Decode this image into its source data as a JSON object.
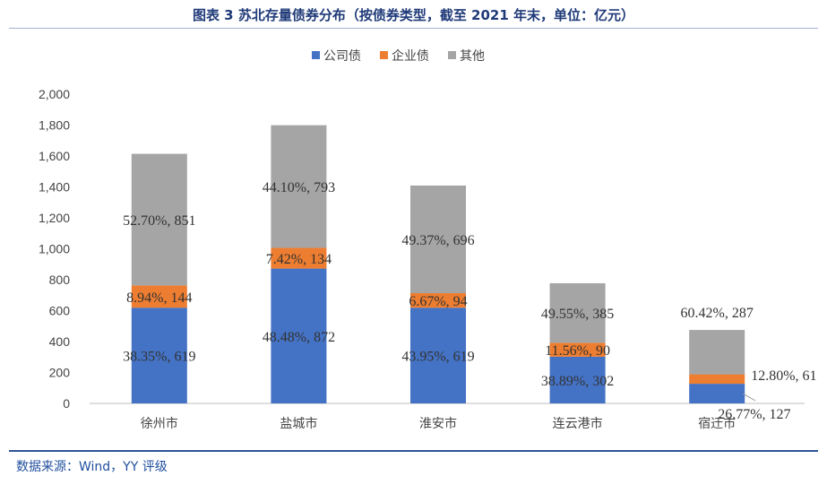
{
  "title": "图表 3 苏北存量债券分布（按债券类型，截至 2021 年末，单位：亿元）",
  "source": "数据来源：Wind，YY 评级",
  "chart_data": {
    "type": "bar",
    "stacked": true,
    "title": "图表 3 苏北存量债券分布（按债券类型，截至 2021 年末，单位：亿元）",
    "categories": [
      "徐州市",
      "盐城市",
      "淮安市",
      "连云港市",
      "宿迁市"
    ],
    "series": [
      {
        "name": "公司债",
        "color": "#4472C4",
        "values": [
          619,
          872,
          619,
          302,
          127
        ],
        "labels": [
          "38.35%, 619",
          "48.48%, 872",
          "43.95%, 619",
          "38.89%, 302",
          "26.77%, 127"
        ]
      },
      {
        "name": "企业债",
        "color": "#ED7D31",
        "values": [
          144,
          134,
          94,
          90,
          61
        ],
        "labels": [
          "8.94%, 144",
          "7.42%, 134",
          "6.67%, 94",
          "11.56%, 90",
          "12.80%, 61"
        ]
      },
      {
        "name": "其他",
        "color": "#A5A5A5",
        "values": [
          851,
          793,
          696,
          385,
          287
        ],
        "labels": [
          "52.70%, 851",
          "44.10%, 793",
          "49.37%, 696",
          "49.55%, 385",
          "60.42%, 287"
        ]
      }
    ],
    "ylim": [
      0,
      2000
    ],
    "yticks": [
      "0",
      "200",
      "400",
      "600",
      "800",
      "1,000",
      "1,200",
      "1,400",
      "1,600",
      "1,800",
      "2,000"
    ],
    "legend_position": "top",
    "grid": false
  }
}
